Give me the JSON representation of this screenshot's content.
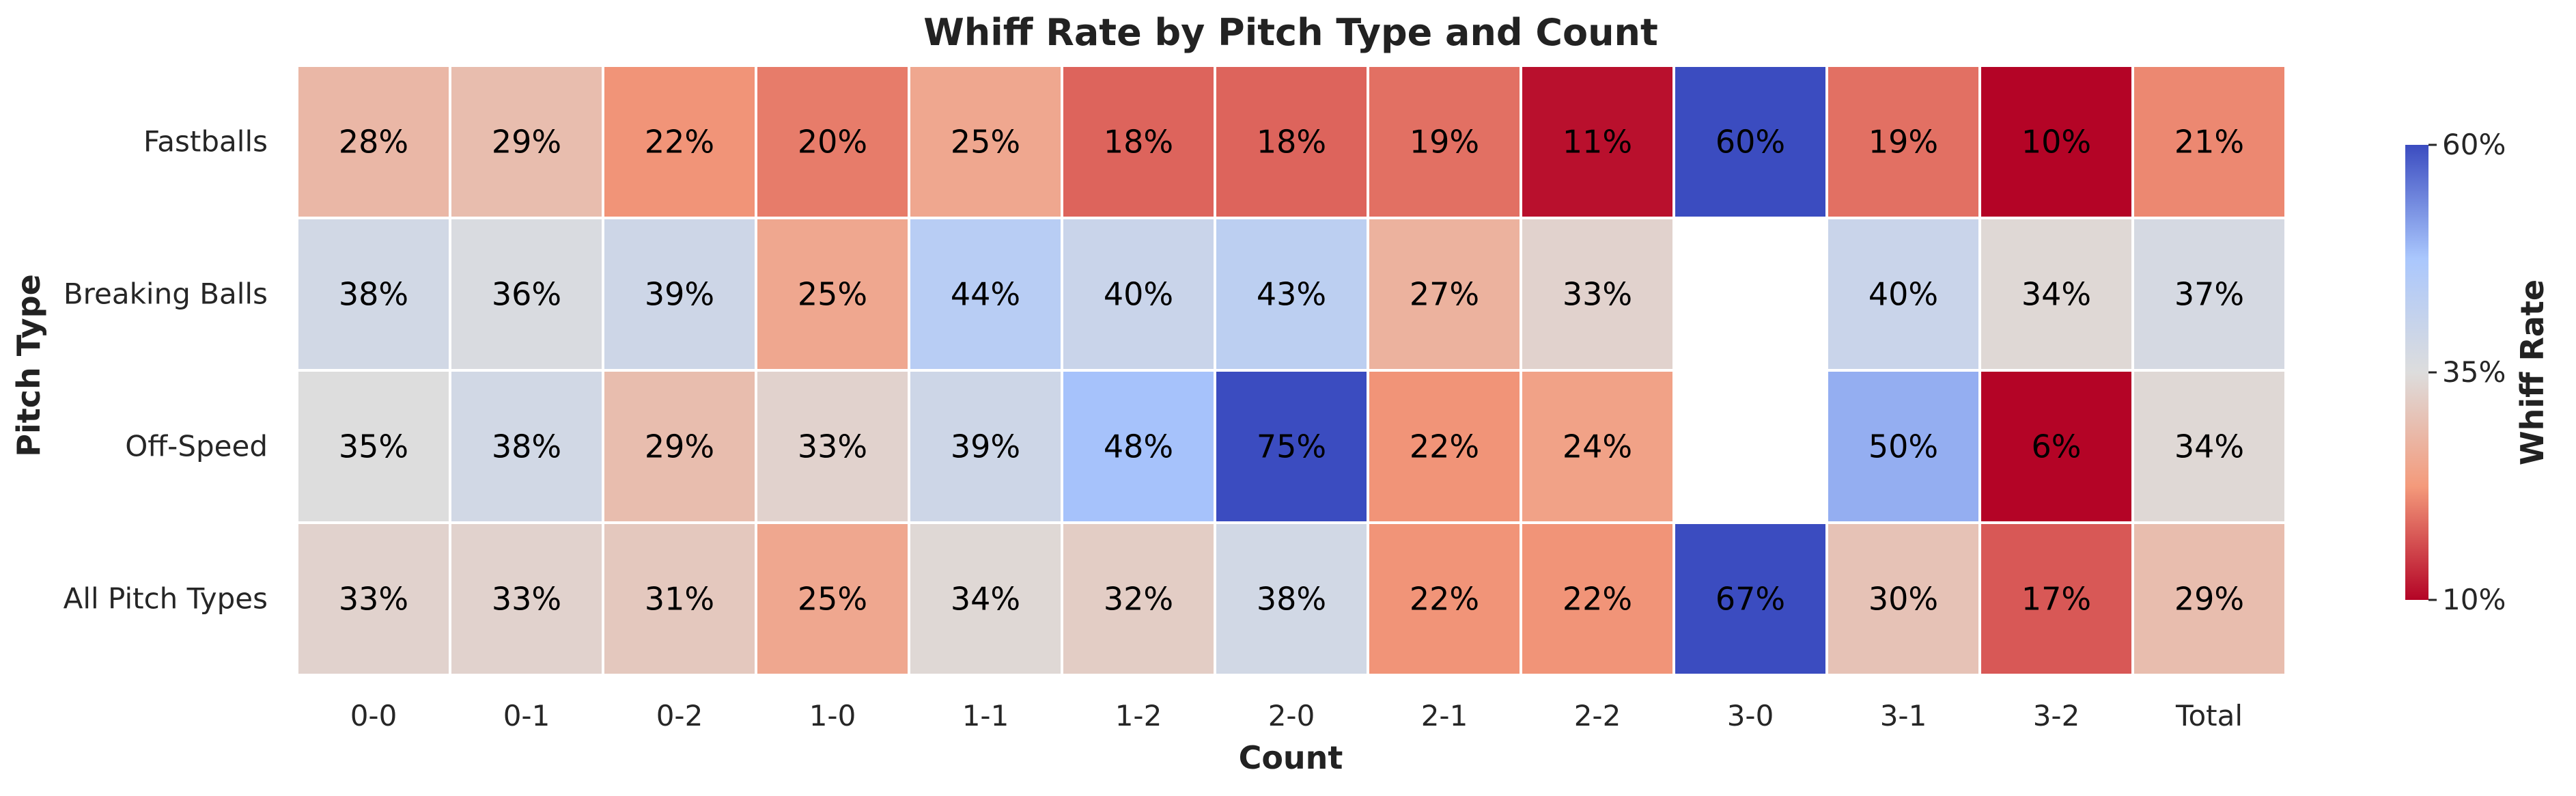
{
  "chart_data": {
    "type": "heatmap",
    "title": "Whiff Rate by Pitch Type and Count",
    "xlabel": "Count",
    "ylabel": "Pitch Type",
    "columns": [
      "0-0",
      "0-1",
      "0-2",
      "1-0",
      "1-1",
      "1-2",
      "2-0",
      "2-1",
      "2-2",
      "3-0",
      "3-1",
      "3-2",
      "Total"
    ],
    "rows": [
      "Fastballs",
      "Breaking Balls",
      "Off-Speed",
      "All Pitch Types"
    ],
    "values": [
      [
        28,
        29,
        22,
        20,
        25,
        18,
        18,
        19,
        11,
        60,
        19,
        10,
        21
      ],
      [
        38,
        36,
        39,
        25,
        44,
        40,
        43,
        27,
        33,
        null,
        40,
        34,
        37
      ],
      [
        35,
        38,
        29,
        33,
        39,
        48,
        75,
        22,
        24,
        null,
        50,
        6,
        34
      ],
      [
        33,
        33,
        31,
        25,
        34,
        32,
        38,
        22,
        22,
        67,
        30,
        17,
        29
      ]
    ],
    "value_format": "percent",
    "colormap": "coolwarm_r",
    "colormap_colors": {
      "low": "#b40426",
      "mid": "#dddddd",
      "high": "#3b4cc0"
    },
    "vmin": 10,
    "vcenter": 35,
    "vmax": 60,
    "colorbar": {
      "label": "Whiff Rate",
      "ticks": [
        "60%",
        "35%",
        "10%"
      ],
      "tick_values": [
        60,
        35,
        10
      ]
    },
    "cell_border_color": "#ffffff",
    "missing_cells": "blank"
  }
}
